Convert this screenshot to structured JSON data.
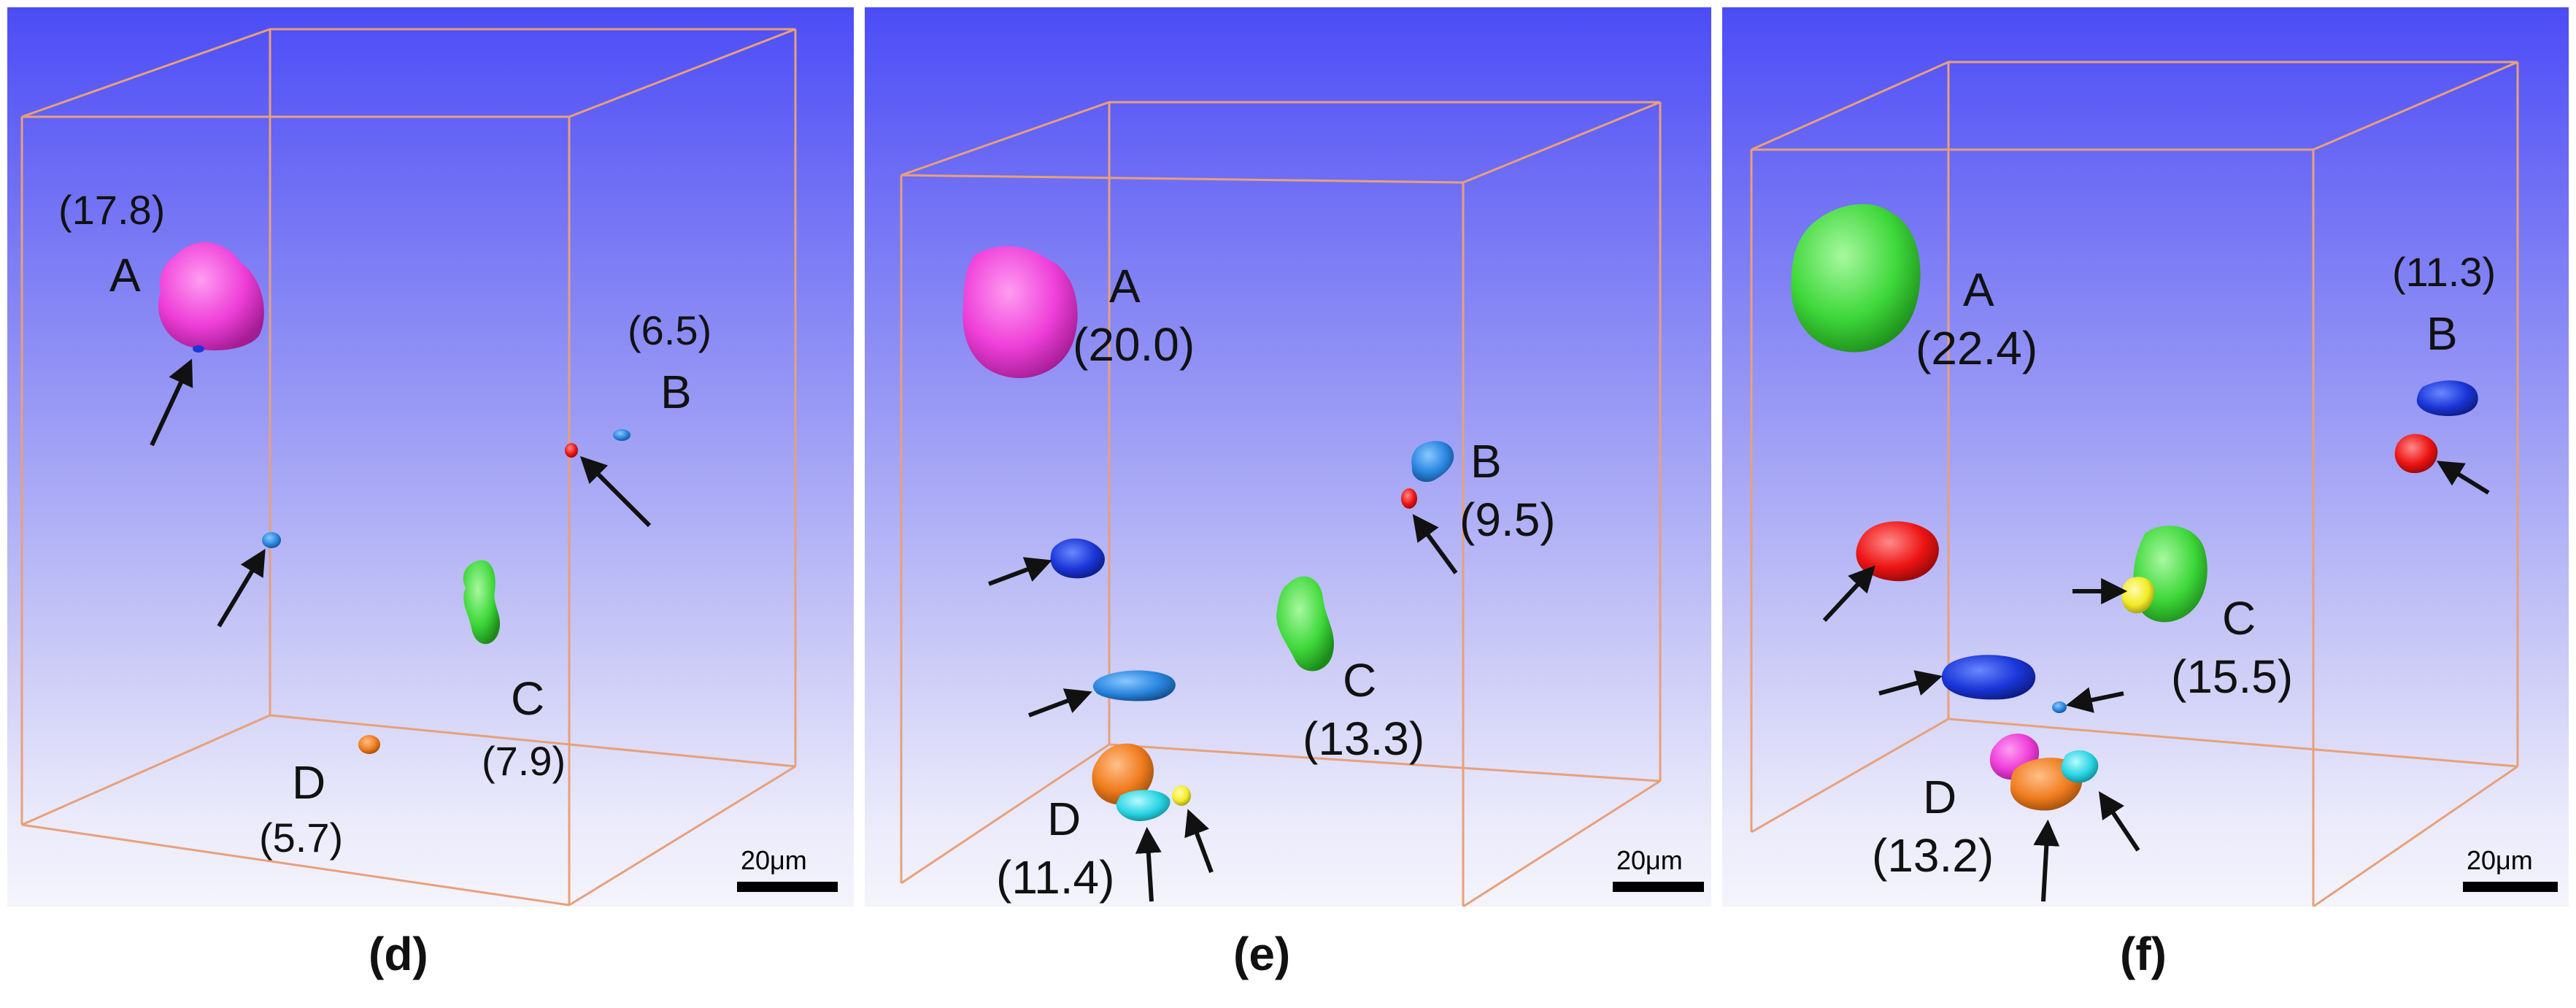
{
  "scale_bar_label": "20μm",
  "panels": [
    {
      "id": "d",
      "caption": "(d)",
      "A": {
        "letter": "A",
        "volume": "(17.8)"
      },
      "B": {
        "letter": "B",
        "volume": "(6.5)"
      },
      "C": {
        "letter": "C",
        "volume": "(7.9)"
      },
      "D": {
        "letter": "D",
        "volume": "(5.7)"
      }
    },
    {
      "id": "e",
      "caption": "(e)",
      "A": {
        "letter": "A",
        "volume": "(20.0)"
      },
      "B": {
        "letter": "B",
        "volume": "(9.5)"
      },
      "C": {
        "letter": "C",
        "volume": "(13.3)"
      },
      "D": {
        "letter": "D",
        "volume": "(11.4)"
      }
    },
    {
      "id": "f",
      "caption": "(f)",
      "A": {
        "letter": "A",
        "volume": "(22.4)"
      },
      "B": {
        "letter": "B",
        "volume": "(11.3)"
      },
      "C": {
        "letter": "C",
        "volume": "(15.5)"
      },
      "D": {
        "letter": "D",
        "volume": "(13.2)"
      }
    }
  ],
  "colors": {
    "box_edge": "#e8a07a",
    "arrow": "#111111",
    "magenta": "#ee3ed8",
    "green": "#3ed83a",
    "red": "#ee1414",
    "blue": "#1a36d8",
    "light_blue": "#2a86e0",
    "orange": "#f07c1e",
    "cyan": "#2ad4e4",
    "yellow": "#f2ec28"
  }
}
